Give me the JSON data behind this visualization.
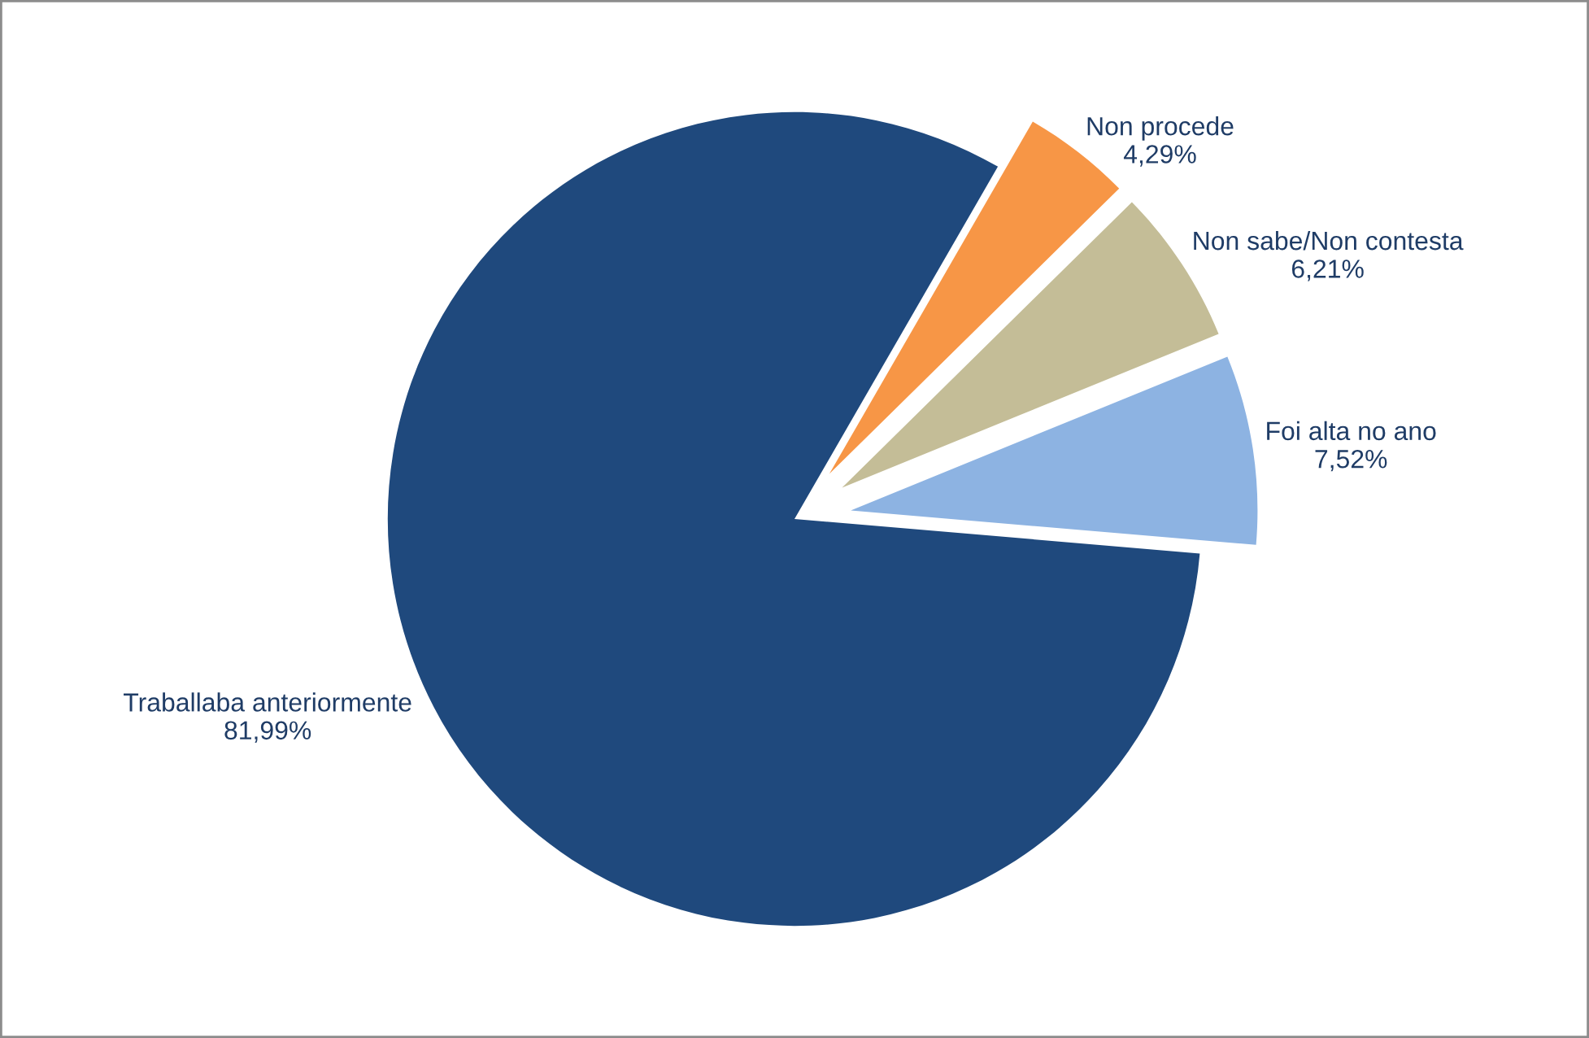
{
  "chart_data": {
    "type": "pie",
    "categories": [
      "Non procede",
      "Non sabe/Non contesta",
      "Foi alta no ano",
      "Traballaba anteriormente"
    ],
    "values": [
      4.29,
      6.21,
      7.52,
      81.99
    ],
    "colors": [
      "#f79646",
      "#c4bd97",
      "#8db3e2",
      "#1f497d"
    ],
    "value_labels": [
      "4,29%",
      "6,21%",
      "7,52%",
      "81,99%"
    ]
  }
}
